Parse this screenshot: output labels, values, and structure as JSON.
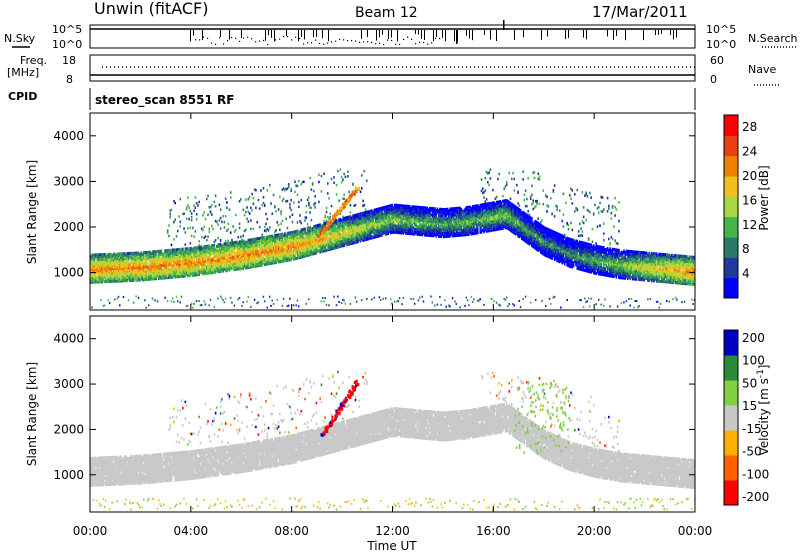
{
  "header": {
    "station": "Unwin (fitACF)",
    "beam": "Beam 12",
    "date": "17/Mar/2011"
  },
  "top_panels": {
    "nsky_label": "N.Sky",
    "nsearch_label": "N.Search",
    "noise_ticks": [
      "10^5",
      "10^0"
    ],
    "freq_label_1": "Freq.",
    "freq_label_2": "[MHz]",
    "freq_ticks": [
      "18",
      "8"
    ],
    "nave_label": "Nave",
    "nave_ticks": [
      "60",
      "0"
    ],
    "cpid_label": "CPID",
    "cpid_value": "stereo_scan 8551 RF"
  },
  "axes": {
    "xlabel": "Time UT",
    "xticks": [
      "00:00",
      "04:00",
      "08:00",
      "12:00",
      "16:00",
      "20:00",
      "00:00"
    ],
    "ylabel": "Slant Range [km]",
    "yticks": [
      "4000",
      "3000",
      "2000",
      "1000"
    ]
  },
  "chart_data": [
    {
      "type": "heatmap",
      "quantity": "Power",
      "colorbar_label": "Power [dB]",
      "colorbar_ticks": [
        "28",
        "24",
        "20",
        "16",
        "12",
        "8",
        "4"
      ],
      "colorbar_range": [
        0,
        30
      ],
      "x_range_hours": [
        0,
        24
      ],
      "y_range_km": [
        180,
        4500
      ],
      "colors": [
        "#0000ff",
        "#1e3a9a",
        "#2a7a6a",
        "#45b24a",
        "#a8d840",
        "#f0c020",
        "#f08000",
        "#e84010",
        "#ff0000"
      ],
      "main_band": {
        "description_points_hours": [
          0,
          2,
          4,
          6,
          8,
          9,
          10,
          11,
          12,
          13,
          14,
          15,
          16,
          16.5,
          17,
          17.5,
          18,
          19,
          20,
          21,
          22,
          24
        ],
        "center_km": [
          1100,
          1150,
          1250,
          1400,
          1600,
          1750,
          1900,
          2050,
          2200,
          2150,
          2100,
          2150,
          2250,
          2300,
          2100,
          1900,
          1700,
          1450,
          1300,
          1200,
          1150,
          1050
        ],
        "power_db": [
          22,
          22,
          22,
          22,
          22,
          20,
          18,
          16,
          14,
          13,
          12,
          13,
          14,
          14,
          12,
          11,
          10,
          10,
          12,
          14,
          18,
          22
        ]
      }
    },
    {
      "type": "heatmap",
      "quantity": "Velocity",
      "colorbar_label": "Velocity [m s^-1]",
      "colorbar_ticks": [
        "200",
        "100",
        "50",
        "15",
        "-15",
        "-50",
        "-100",
        "-200"
      ],
      "colorbar_range": [
        -250,
        250
      ],
      "ground_scatter_color": "#c8c8c8",
      "x_range_hours": [
        0,
        24
      ],
      "y_range_km": [
        180,
        4500
      ],
      "colors": [
        "#ff0000",
        "#ff6000",
        "#ffb000",
        "#c8c8c8",
        "#80d040",
        "#2a8a3a",
        "#0000c0"
      ]
    }
  ]
}
